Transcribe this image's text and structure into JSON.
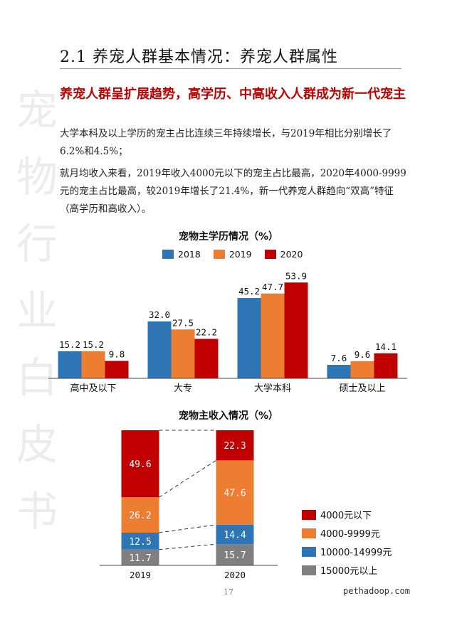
{
  "watermark": [
    "宠",
    "物",
    "行",
    "业",
    "白",
    "皮",
    "书"
  ],
  "section_title": "2.1 养宠人群基本情况：养宠人群属性",
  "headline": "养宠人群呈扩展趋势，高学历、中高收入人群成为新一代宠主",
  "paragraphs": [
    "大学本科及以上学历的宠主占比连续三年持续增长，与2019年相比分别增长了6.2%和4.5%；",
    "就月均收入来看，2019年收入4000元以下的宠主占比最高，2020年4000-9999元的宠主占比最高，较2019年增长了21.4%，新一代养宠人群趋向“双高”特征（高学历和高收入）。"
  ],
  "chart_data": [
    {
      "type": "bar",
      "title": "宠物主学历情况（%）",
      "categories": [
        "高中及以下",
        "大专",
        "大学本科",
        "硕士及以上"
      ],
      "series": [
        {
          "name": "2018",
          "color": "#2e75b6",
          "values": [
            15.2,
            32.0,
            45.2,
            7.6
          ],
          "labels": [
            "15.2",
            "32.0",
            "45.2",
            "7.6"
          ]
        },
        {
          "name": "2019",
          "color": "#ed7d31",
          "values": [
            15.2,
            27.5,
            47.7,
            9.6
          ],
          "labels": [
            "15.2",
            "27.5",
            "47.7",
            "9.6"
          ]
        },
        {
          "name": "2020",
          "color": "#c00000",
          "values": [
            9.8,
            22.2,
            53.9,
            14.1
          ],
          "labels": [
            "9.8",
            "22.2",
            "53.9",
            "14.1"
          ]
        }
      ],
      "ylim": [
        0,
        60
      ],
      "legend": "top"
    },
    {
      "type": "bar",
      "stacked": true,
      "title": "宠物主收入情况（%）",
      "categories": [
        "2019",
        "2020"
      ],
      "series": [
        {
          "name": "15000元以上",
          "color": "#7f7f7f",
          "values": [
            11.7,
            15.7
          ],
          "labels": [
            "11.7",
            "15.7"
          ]
        },
        {
          "name": "10000-14999元",
          "color": "#2e75b6",
          "values": [
            12.5,
            14.4
          ],
          "labels": [
            "12.5",
            "14.4"
          ]
        },
        {
          "name": "4000-9999元",
          "color": "#ed7d31",
          "values": [
            26.2,
            47.6
          ],
          "labels": [
            "26.2",
            "47.6"
          ]
        },
        {
          "name": "4000元以下",
          "color": "#c00000",
          "values": [
            49.6,
            22.3
          ],
          "labels": [
            "49.6",
            "22.3"
          ]
        }
      ],
      "ylim": [
        0,
        100
      ],
      "legend": "right"
    }
  ],
  "income_legend_order": [
    {
      "name": "4000元以下",
      "color": "#c00000"
    },
    {
      "name": "4000-9999元",
      "color": "#ed7d31"
    },
    {
      "name": "10000-14999元",
      "color": "#2e75b6"
    },
    {
      "name": "15000元以上",
      "color": "#7f7f7f"
    }
  ],
  "page_number": "17",
  "site": "pethadoop.com"
}
